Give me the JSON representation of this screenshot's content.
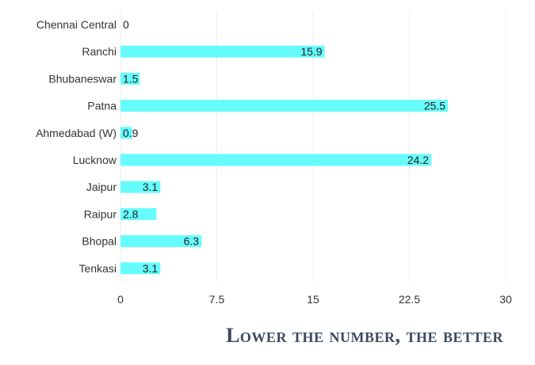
{
  "chart_data": {
    "type": "bar",
    "orientation": "horizontal",
    "categories": [
      "Chennai Central",
      "Ranchi",
      "Bhubaneswar",
      "Patna",
      "Ahmedabad (W)",
      "Lucknow",
      "Jaipur",
      "Raipur",
      "Bhopal",
      "Tenkasi"
    ],
    "values": [
      0,
      15.9,
      1.5,
      25.5,
      0.9,
      24.2,
      3.1,
      2.8,
      6.3,
      3.1
    ],
    "xlim": [
      0,
      30
    ],
    "xticks": [
      "0",
      "7.5",
      "15",
      "22.5",
      "30"
    ],
    "bar_color": "#66fcfc",
    "grid": true,
    "title": "",
    "xlabel": "",
    "ylabel": ""
  },
  "footer_note": "Lower the number, the better"
}
